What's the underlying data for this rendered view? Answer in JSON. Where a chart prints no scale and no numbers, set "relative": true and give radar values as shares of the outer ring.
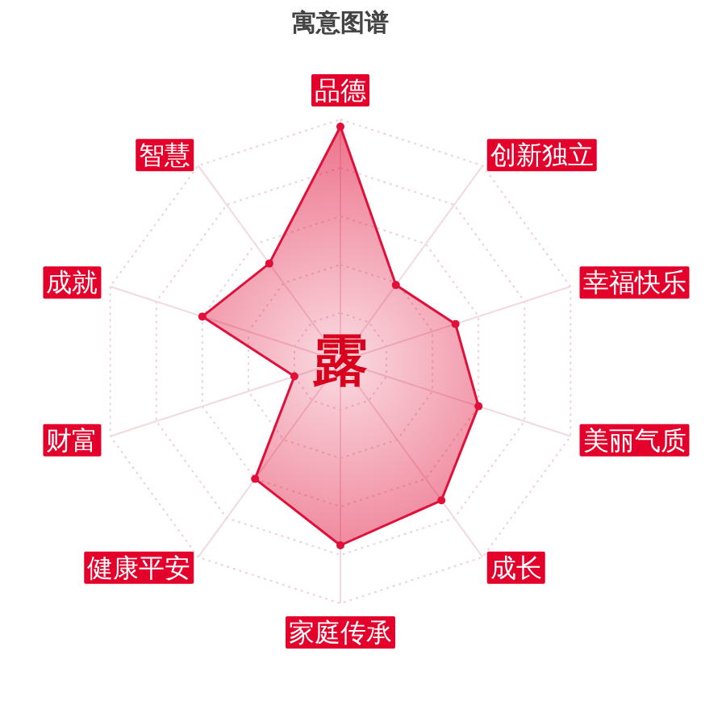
{
  "chart_data": {
    "type": "radar",
    "title": "寓意图谱",
    "categories": [
      "品德",
      "创新独立",
      "幸福快乐",
      "美丽气质",
      "成长",
      "家庭传承",
      "健康平安",
      "财富",
      "成就",
      "智慧"
    ],
    "relative": true,
    "grid": true,
    "marker": "circle",
    "series": [
      {
        "color": "#e0103a",
        "values": [
          0.97,
          0.39,
          0.5,
          0.6,
          0.71,
          0.76,
          0.6,
          0.2,
          0.6,
          0.5
        ]
      }
    ],
    "annotations": [
      "露"
    ]
  }
}
